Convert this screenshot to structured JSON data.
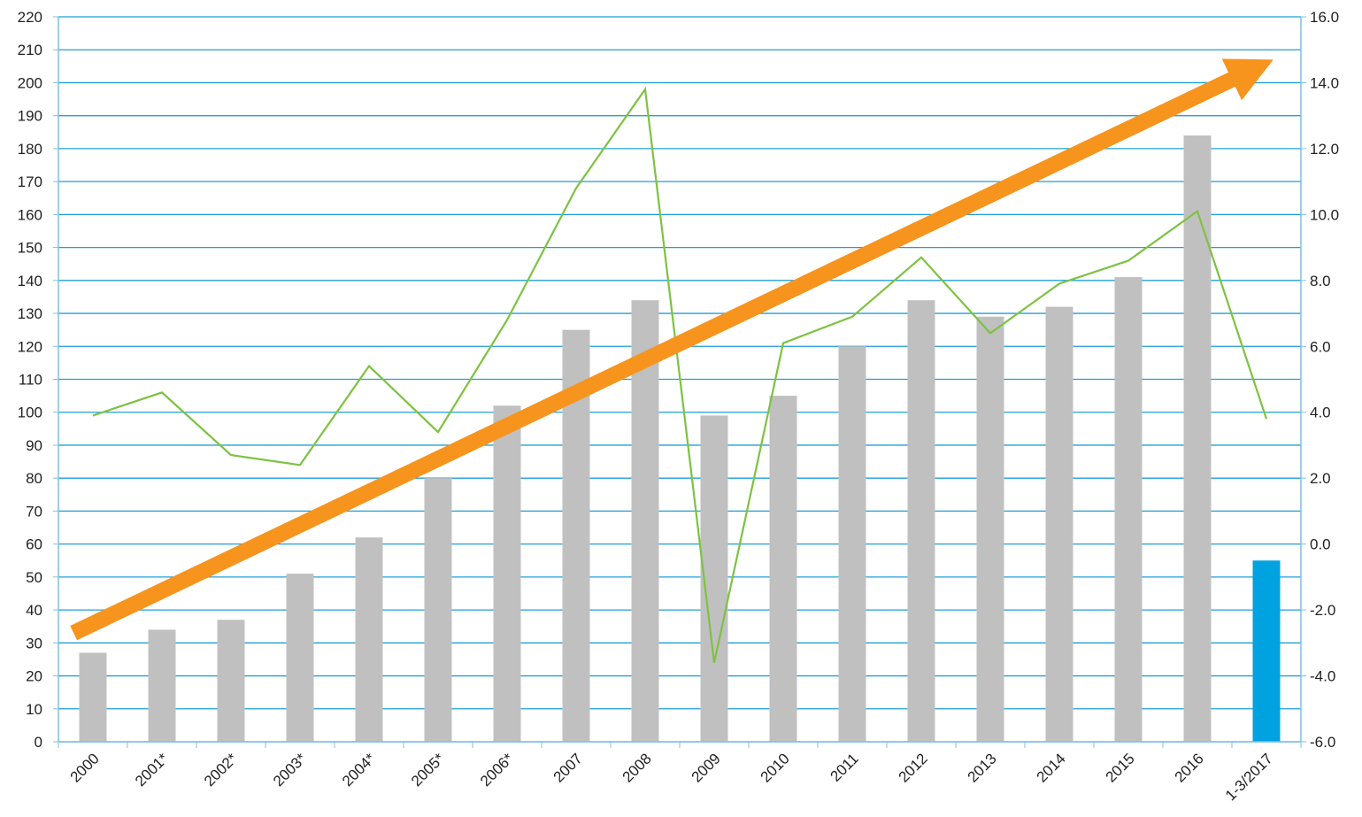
{
  "chart_data": {
    "type": "bar",
    "categories": [
      "2000",
      "2001*",
      "2002*",
      "2003*",
      "2004*",
      "2005*",
      "2006*",
      "2007",
      "2008",
      "2009",
      "2010",
      "2011",
      "2012",
      "2013",
      "2014",
      "2015",
      "2016",
      "1-3/2017"
    ],
    "series": [
      {
        "type": "bar",
        "axis": "left",
        "values": [
          27,
          34,
          37,
          51,
          62,
          80,
          102,
          125,
          134,
          99,
          105,
          120,
          134,
          129,
          132,
          141,
          184,
          55
        ],
        "colors": [
          "#c0c0c0",
          "#c0c0c0",
          "#c0c0c0",
          "#c0c0c0",
          "#c0c0c0",
          "#c0c0c0",
          "#c0c0c0",
          "#c0c0c0",
          "#c0c0c0",
          "#c0c0c0",
          "#c0c0c0",
          "#c0c0c0",
          "#c0c0c0",
          "#c0c0c0",
          "#c0c0c0",
          "#c0c0c0",
          "#c0c0c0",
          "#00a2e0"
        ]
      },
      {
        "type": "line",
        "axis": "right",
        "color": "#7dc242",
        "values": [
          3.9,
          4.6,
          2.7,
          2.4,
          5.4,
          3.4,
          6.8,
          10.8,
          13.8,
          -3.6,
          6.1,
          6.9,
          8.7,
          6.4,
          7.9,
          8.6,
          10.1,
          3.8
        ]
      }
    ],
    "ylim": [
      0,
      220
    ],
    "y_ticks": [
      0,
      10,
      20,
      30,
      40,
      50,
      60,
      70,
      80,
      90,
      100,
      110,
      120,
      130,
      140,
      150,
      160,
      170,
      180,
      190,
      200,
      210,
      220
    ],
    "y2lim": [
      -6.0,
      16.0
    ],
    "y2_ticks": [
      "-6.0",
      "-4.0",
      "-2.0",
      "0.0",
      "2.0",
      "4.0",
      "6.0",
      "8.0",
      "10.0",
      "12.0",
      "14.0",
      "16.0"
    ],
    "grid": true,
    "grid_color": "#1f9fd8",
    "axis_color": "#7fbfe0",
    "trend_arrow": {
      "color": "#f7941d",
      "from": {
        "category_index": 0,
        "y": 33
      },
      "to": {
        "category_index": 17,
        "y": 207
      }
    },
    "legend": "none"
  }
}
